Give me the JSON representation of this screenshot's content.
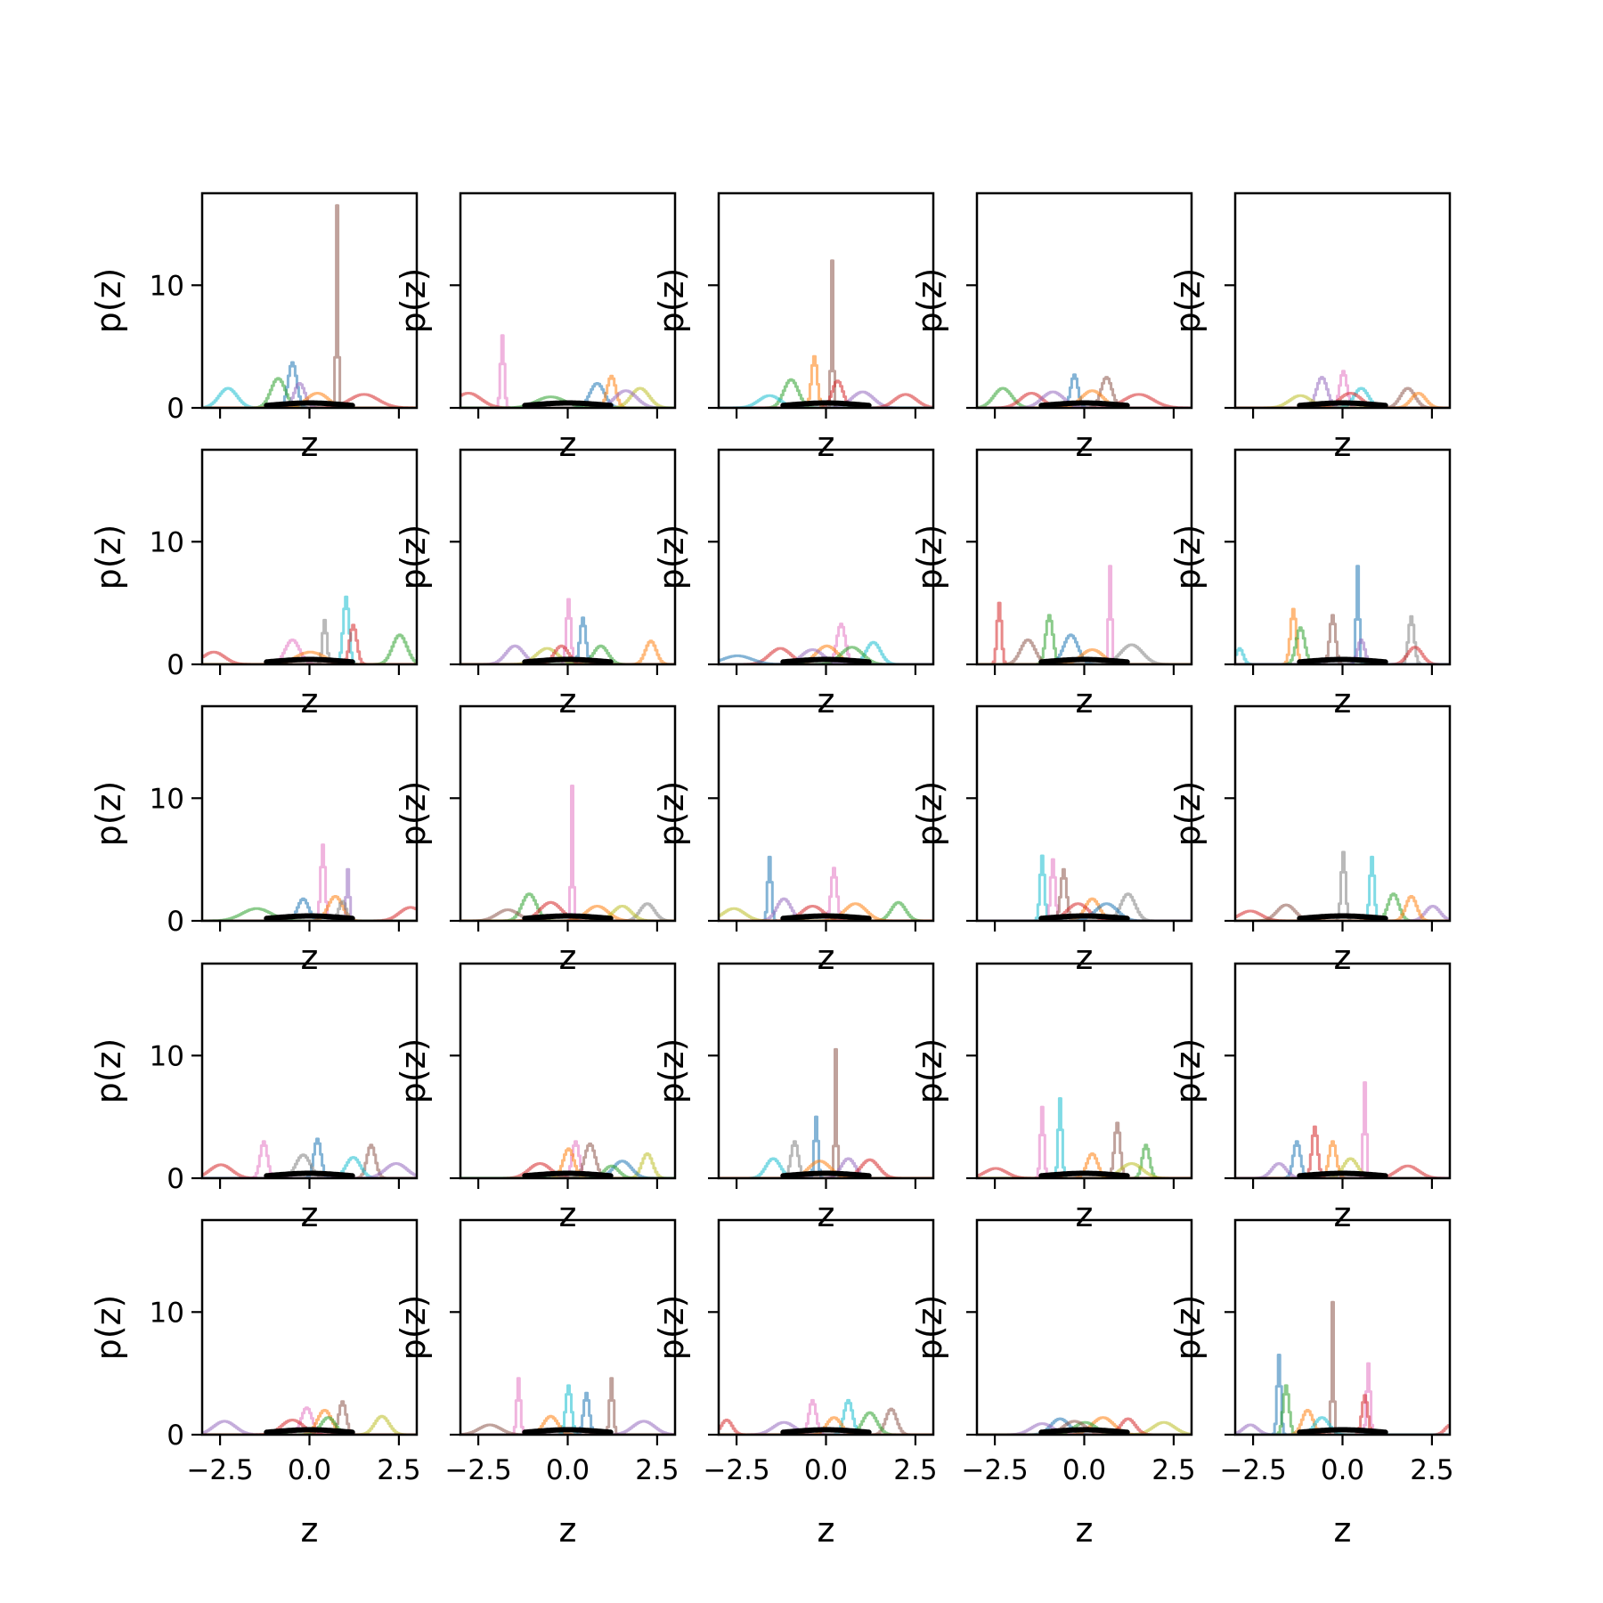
{
  "chart_data": {
    "type": "line",
    "grid_rows": 5,
    "grid_cols": 5,
    "xlabel": "z",
    "ylabel": "p(z)",
    "xlim": [
      -3.0,
      3.0
    ],
    "ylim": [
      0,
      17.5
    ],
    "xticks": [
      -2.5,
      0.0,
      2.5
    ],
    "xtick_labels": [
      "−2.5",
      "0.0",
      "2.5"
    ],
    "yticks": [
      0,
      10
    ],
    "ytick_labels": [
      "0",
      "10"
    ],
    "grid": false,
    "prior": {
      "distribution": "standard normal",
      "mean": 0,
      "std": 1,
      "color": "#000000"
    },
    "series_colors": [
      "#1f77b4",
      "#ff7f0e",
      "#2ca02c",
      "#d62728",
      "#9467bd",
      "#8c564b",
      "#e377c2",
      "#7f7f7f",
      "#bcbd22",
      "#17becf"
    ],
    "panels": [
      {
        "peaks": [
          [
            -2.3,
            1.6,
            0.25,
            9
          ],
          [
            -0.5,
            3.7,
            0.12,
            0
          ],
          [
            -0.9,
            2.4,
            0.2,
            2
          ],
          [
            -0.3,
            2.0,
            0.15,
            4
          ],
          [
            0.75,
            16.5,
            0.03,
            5
          ],
          [
            1.5,
            1.1,
            0.4,
            3
          ],
          [
            0.2,
            1.2,
            0.3,
            1
          ]
        ]
      },
      {
        "peaks": [
          [
            -1.85,
            5.9,
            0.05,
            6
          ],
          [
            -2.8,
            1.2,
            0.35,
            3
          ],
          [
            0.8,
            2.0,
            0.2,
            0
          ],
          [
            1.2,
            2.6,
            0.12,
            1
          ],
          [
            2.0,
            1.6,
            0.25,
            8
          ],
          [
            1.6,
            1.4,
            0.3,
            4
          ],
          [
            -0.5,
            0.9,
            0.4,
            2
          ]
        ]
      },
      {
        "peaks": [
          [
            0.15,
            12.0,
            0.03,
            5
          ],
          [
            -0.35,
            4.2,
            0.08,
            1
          ],
          [
            -1.0,
            2.3,
            0.2,
            2
          ],
          [
            0.3,
            2.2,
            0.15,
            3
          ],
          [
            1.0,
            1.3,
            0.3,
            4
          ],
          [
            2.2,
            1.1,
            0.3,
            3
          ],
          [
            -1.6,
            1.0,
            0.3,
            9
          ]
        ]
      },
      {
        "peaks": [
          [
            -0.3,
            2.7,
            0.1,
            0
          ],
          [
            0.6,
            2.5,
            0.15,
            5
          ],
          [
            -2.3,
            1.6,
            0.25,
            2
          ],
          [
            -1.5,
            1.2,
            0.3,
            3
          ],
          [
            1.5,
            1.1,
            0.4,
            3
          ],
          [
            0.2,
            1.4,
            0.3,
            1
          ],
          [
            -0.9,
            1.3,
            0.3,
            4
          ]
        ]
      },
      {
        "peaks": [
          [
            0.0,
            3.0,
            0.1,
            6
          ],
          [
            -0.6,
            2.5,
            0.15,
            4
          ],
          [
            1.8,
            1.6,
            0.2,
            5
          ],
          [
            2.1,
            1.2,
            0.2,
            1
          ],
          [
            0.5,
            1.6,
            0.2,
            9
          ],
          [
            -1.2,
            1.0,
            0.3,
            8
          ],
          [
            0.2,
            1.2,
            0.3,
            3
          ]
        ]
      },
      {
        "peaks": [
          [
            1.0,
            5.5,
            0.08,
            9
          ],
          [
            0.4,
            3.6,
            0.06,
            7
          ],
          [
            1.2,
            3.2,
            0.1,
            3
          ],
          [
            -0.5,
            2.0,
            0.2,
            6
          ],
          [
            2.5,
            2.4,
            0.2,
            2
          ],
          [
            -2.7,
            1.0,
            0.3,
            3
          ],
          [
            0.0,
            1.0,
            0.4,
            1
          ]
        ]
      },
      {
        "peaks": [
          [
            0.0,
            5.3,
            0.06,
            6
          ],
          [
            0.4,
            3.8,
            0.08,
            0
          ],
          [
            2.3,
            1.9,
            0.15,
            1
          ],
          [
            -1.5,
            1.5,
            0.25,
            4
          ],
          [
            -0.6,
            1.3,
            0.3,
            8
          ],
          [
            0.9,
            1.5,
            0.2,
            2
          ],
          [
            -0.2,
            1.5,
            0.2,
            3
          ]
        ]
      },
      {
        "peaks": [
          [
            0.4,
            3.3,
            0.12,
            6
          ],
          [
            1.3,
            1.8,
            0.2,
            9
          ],
          [
            0.0,
            1.5,
            0.3,
            1
          ],
          [
            -1.3,
            1.3,
            0.3,
            3
          ],
          [
            -2.5,
            0.7,
            0.4,
            0
          ],
          [
            0.7,
            1.4,
            0.3,
            2
          ],
          [
            -0.4,
            1.2,
            0.3,
            4
          ]
        ]
      },
      {
        "peaks": [
          [
            0.7,
            8.0,
            0.04,
            6
          ],
          [
            -2.4,
            5.0,
            0.06,
            3
          ],
          [
            -1.0,
            4.0,
            0.1,
            2
          ],
          [
            -0.4,
            2.4,
            0.2,
            0
          ],
          [
            -1.6,
            2.0,
            0.2,
            5
          ],
          [
            1.3,
            1.6,
            0.3,
            7
          ],
          [
            0.2,
            1.2,
            0.3,
            1
          ]
        ]
      },
      {
        "peaks": [
          [
            0.4,
            8.0,
            0.04,
            0
          ],
          [
            -1.4,
            4.5,
            0.08,
            1
          ],
          [
            -0.3,
            4.0,
            0.08,
            5
          ],
          [
            1.9,
            3.9,
            0.08,
            7
          ],
          [
            -1.2,
            3.0,
            0.12,
            2
          ],
          [
            2.0,
            1.4,
            0.2,
            3
          ],
          [
            -2.9,
            1.3,
            0.1,
            9
          ],
          [
            0.5,
            2.0,
            0.1,
            4
          ]
        ]
      },
      {
        "peaks": [
          [
            0.35,
            6.2,
            0.06,
            6
          ],
          [
            1.05,
            4.2,
            0.04,
            4
          ],
          [
            -0.2,
            1.8,
            0.15,
            0
          ],
          [
            0.7,
            2.0,
            0.2,
            1
          ],
          [
            2.8,
            1.1,
            0.3,
            3
          ],
          [
            -1.5,
            1.0,
            0.4,
            2
          ],
          [
            0.9,
            1.6,
            0.1,
            7
          ]
        ]
      },
      {
        "peaks": [
          [
            0.1,
            11.0,
            0.03,
            6
          ],
          [
            -1.1,
            2.2,
            0.2,
            2
          ],
          [
            2.2,
            1.4,
            0.2,
            7
          ],
          [
            -0.5,
            1.5,
            0.3,
            3
          ],
          [
            0.8,
            1.2,
            0.3,
            1
          ],
          [
            1.5,
            1.2,
            0.25,
            8
          ],
          [
            -1.7,
            0.9,
            0.3,
            5
          ]
        ]
      },
      {
        "peaks": [
          [
            -1.6,
            5.2,
            0.05,
            0
          ],
          [
            0.2,
            4.3,
            0.08,
            6
          ],
          [
            -1.2,
            1.8,
            0.2,
            4
          ],
          [
            2.0,
            1.5,
            0.2,
            2
          ],
          [
            -2.6,
            1.0,
            0.3,
            8
          ],
          [
            0.8,
            1.4,
            0.3,
            1
          ],
          [
            -0.4,
            1.2,
            0.3,
            3
          ]
        ]
      },
      {
        "peaks": [
          [
            -1.2,
            5.3,
            0.06,
            9
          ],
          [
            -0.9,
            5.0,
            0.06,
            6
          ],
          [
            -0.6,
            4.2,
            0.08,
            5
          ],
          [
            1.2,
            2.2,
            0.2,
            7
          ],
          [
            0.2,
            1.8,
            0.2,
            1
          ],
          [
            -0.2,
            1.4,
            0.3,
            3
          ],
          [
            0.6,
            1.4,
            0.3,
            0
          ]
        ]
      },
      {
        "peaks": [
          [
            0.0,
            5.6,
            0.06,
            7
          ],
          [
            0.8,
            5.2,
            0.06,
            9
          ],
          [
            1.4,
            2.2,
            0.15,
            2
          ],
          [
            2.5,
            1.2,
            0.2,
            4
          ],
          [
            -2.6,
            0.8,
            0.3,
            3
          ],
          [
            -1.6,
            1.3,
            0.25,
            5
          ],
          [
            1.9,
            2.0,
            0.15,
            1
          ]
        ]
      },
      {
        "peaks": [
          [
            0.2,
            3.2,
            0.1,
            0
          ],
          [
            -1.3,
            3.0,
            0.1,
            6
          ],
          [
            1.7,
            2.7,
            0.12,
            5
          ],
          [
            -0.2,
            1.9,
            0.2,
            7
          ],
          [
            1.2,
            1.7,
            0.2,
            9
          ],
          [
            -2.5,
            1.1,
            0.3,
            3
          ],
          [
            2.4,
            1.2,
            0.3,
            4
          ]
        ]
      },
      {
        "peaks": [
          [
            0.2,
            3.0,
            0.1,
            6
          ],
          [
            0.6,
            2.8,
            0.15,
            5
          ],
          [
            0.0,
            2.4,
            0.15,
            1
          ],
          [
            -0.8,
            1.2,
            0.3,
            3
          ],
          [
            2.2,
            2.0,
            0.15,
            8
          ],
          [
            1.5,
            1.4,
            0.25,
            0
          ],
          [
            1.2,
            1.0,
            0.2,
            2
          ]
        ]
      },
      {
        "peaks": [
          [
            0.25,
            10.5,
            0.03,
            5
          ],
          [
            -0.3,
            5.0,
            0.05,
            0
          ],
          [
            -0.9,
            3.0,
            0.1,
            7
          ],
          [
            -1.5,
            1.6,
            0.2,
            9
          ],
          [
            0.6,
            1.6,
            0.2,
            4
          ],
          [
            1.2,
            1.5,
            0.25,
            3
          ],
          [
            -0.2,
            1.4,
            0.3,
            1
          ]
        ]
      },
      {
        "peaks": [
          [
            -0.7,
            6.5,
            0.05,
            9
          ],
          [
            -1.2,
            5.8,
            0.05,
            6
          ],
          [
            0.9,
            4.5,
            0.08,
            5
          ],
          [
            1.7,
            2.7,
            0.1,
            2
          ],
          [
            0.2,
            2.0,
            0.15,
            1
          ],
          [
            1.3,
            1.2,
            0.3,
            8
          ],
          [
            -2.5,
            0.8,
            0.3,
            3
          ]
        ]
      },
      {
        "peaks": [
          [
            0.6,
            7.8,
            0.04,
            6
          ],
          [
            -0.8,
            4.2,
            0.08,
            3
          ],
          [
            -1.3,
            3.0,
            0.1,
            0
          ],
          [
            -0.3,
            3.0,
            0.1,
            1
          ],
          [
            0.2,
            1.6,
            0.2,
            8
          ],
          [
            1.8,
            1.0,
            0.3,
            3
          ],
          [
            -1.8,
            1.2,
            0.2,
            4
          ]
        ]
      },
      {
        "peaks": [
          [
            0.9,
            2.7,
            0.1,
            5
          ],
          [
            -0.1,
            2.2,
            0.15,
            6
          ],
          [
            0.4,
            2.0,
            0.2,
            1
          ],
          [
            2.0,
            1.5,
            0.2,
            8
          ],
          [
            -2.4,
            1.1,
            0.3,
            4
          ],
          [
            0.5,
            1.4,
            0.2,
            2
          ],
          [
            -0.5,
            1.2,
            0.3,
            3
          ]
        ]
      },
      {
        "peaks": [
          [
            -1.4,
            4.6,
            0.05,
            6
          ],
          [
            0.0,
            4.0,
            0.08,
            9
          ],
          [
            1.2,
            4.6,
            0.05,
            5
          ],
          [
            0.5,
            3.4,
            0.08,
            0
          ],
          [
            -0.5,
            1.5,
            0.2,
            1
          ],
          [
            2.1,
            1.1,
            0.3,
            4
          ],
          [
            -2.2,
            0.8,
            0.3,
            5
          ]
        ]
      },
      {
        "peaks": [
          [
            -0.4,
            2.8,
            0.1,
            6
          ],
          [
            0.6,
            2.8,
            0.12,
            9
          ],
          [
            1.8,
            2.1,
            0.15,
            5
          ],
          [
            1.2,
            1.8,
            0.2,
            2
          ],
          [
            -2.8,
            1.2,
            0.15,
            3
          ],
          [
            -1.2,
            1.0,
            0.3,
            4
          ],
          [
            0.2,
            1.4,
            0.2,
            1
          ]
        ]
      },
      {
        "peaks": [
          [
            -0.7,
            1.3,
            0.25,
            0
          ],
          [
            0.5,
            1.4,
            0.3,
            1
          ],
          [
            2.2,
            1.0,
            0.3,
            8
          ],
          [
            -1.2,
            0.9,
            0.3,
            4
          ],
          [
            1.2,
            1.3,
            0.2,
            3
          ],
          [
            0.0,
            1.0,
            0.3,
            2
          ],
          [
            -0.3,
            1.1,
            0.3,
            5
          ]
        ]
      },
      {
        "peaks": [
          [
            -0.3,
            10.8,
            0.03,
            5
          ],
          [
            -1.8,
            6.5,
            0.05,
            0
          ],
          [
            0.7,
            5.8,
            0.05,
            6
          ],
          [
            0.6,
            3.2,
            0.08,
            3
          ],
          [
            -1.6,
            4.0,
            0.08,
            2
          ],
          [
            -1.0,
            2.0,
            0.15,
            1
          ],
          [
            -2.6,
            0.8,
            0.2,
            4
          ],
          [
            3.0,
            0.8,
            0.15,
            3
          ],
          [
            -0.6,
            1.4,
            0.2,
            9
          ]
        ]
      }
    ]
  }
}
